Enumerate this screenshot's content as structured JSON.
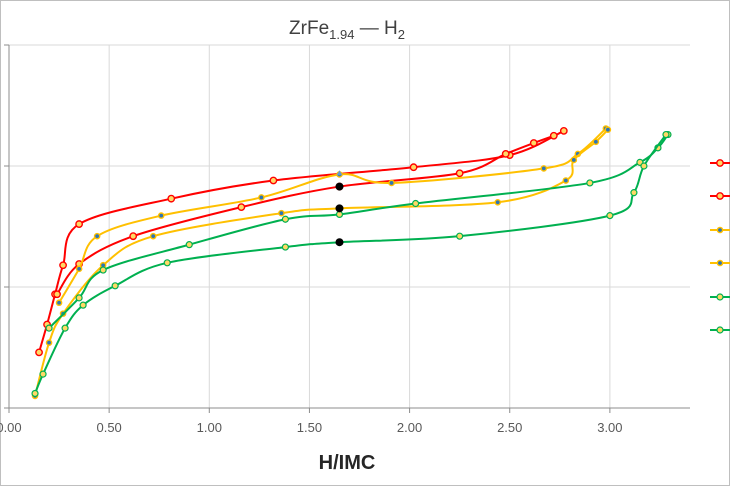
{
  "chart_data": {
    "type": "line",
    "title": {
      "main": "ZrFe",
      "sub": "1.94",
      "dash": " — H",
      "sub2": "2"
    },
    "xlabel": "H/IMC",
    "ylabel": "",
    "xlim": [
      0,
      3.4
    ],
    "ylim": [
      0,
      3
    ],
    "xticks": [
      "0.00",
      "0.50",
      "1.00",
      "1.50",
      "2.00",
      "2.50",
      "3.00"
    ],
    "grid": true,
    "colors": {
      "red": "#ff0000",
      "yellow": "#ffc000",
      "green": "#00b050"
    },
    "series": [
      {
        "color": "#ff0000",
        "marker": "open-yellow",
        "points": [
          [
            0.15,
            0.46
          ],
          [
            0.19,
            0.69
          ],
          [
            0.23,
            0.94
          ],
          [
            0.27,
            1.18
          ],
          [
            0.35,
            1.52
          ],
          [
            0.81,
            1.73
          ],
          [
            1.32,
            1.88
          ],
          [
            2.02,
            1.99
          ],
          [
            2.5,
            2.09
          ],
          [
            2.77,
            2.29
          ]
        ]
      },
      {
        "color": "#ff0000",
        "marker": "open-yellow",
        "points": [
          [
            0.24,
            0.94
          ],
          [
            0.35,
            1.19
          ],
          [
            0.62,
            1.42
          ],
          [
            1.16,
            1.66
          ],
          [
            1.65,
            1.83
          ],
          [
            2.25,
            1.94
          ],
          [
            2.48,
            2.1
          ],
          [
            2.62,
            2.19
          ],
          [
            2.72,
            2.25
          ]
        ]
      },
      {
        "color": "#ffc000",
        "marker": "blue-dot",
        "points": [
          [
            0.25,
            0.87
          ],
          [
            0.35,
            1.15
          ],
          [
            0.44,
            1.42
          ],
          [
            0.76,
            1.59
          ],
          [
            1.26,
            1.74
          ],
          [
            1.65,
            1.93
          ],
          [
            1.91,
            1.86
          ],
          [
            2.67,
            1.98
          ],
          [
            2.84,
            2.1
          ],
          [
            2.98,
            2.31
          ]
        ]
      },
      {
        "color": "#ffc000",
        "marker": "blue-dot",
        "points": [
          [
            0.13,
            0.1
          ],
          [
            0.2,
            0.54
          ],
          [
            0.27,
            0.78
          ],
          [
            0.47,
            1.18
          ],
          [
            0.72,
            1.42
          ],
          [
            1.36,
            1.61
          ],
          [
            1.65,
            1.65
          ],
          [
            2.44,
            1.7
          ],
          [
            2.78,
            1.88
          ],
          [
            2.82,
            2.05
          ],
          [
            2.93,
            2.2
          ],
          [
            2.99,
            2.3
          ]
        ]
      },
      {
        "color": "#00b050",
        "marker": "yellow-dot",
        "points": [
          [
            0.2,
            0.66
          ],
          [
            0.35,
            0.91
          ],
          [
            0.47,
            1.14
          ],
          [
            0.9,
            1.35
          ],
          [
            1.38,
            1.56
          ],
          [
            1.65,
            1.6
          ],
          [
            2.03,
            1.69
          ],
          [
            2.9,
            1.86
          ],
          [
            3.15,
            2.03
          ],
          [
            3.24,
            2.15
          ],
          [
            3.29,
            2.26
          ]
        ]
      },
      {
        "color": "#00b050",
        "marker": "yellow-dot",
        "points": [
          [
            0.13,
            0.12
          ],
          [
            0.17,
            0.28
          ],
          [
            0.28,
            0.66
          ],
          [
            0.37,
            0.85
          ],
          [
            0.53,
            1.01
          ],
          [
            0.79,
            1.2
          ],
          [
            1.38,
            1.33
          ],
          [
            1.65,
            1.37
          ],
          [
            2.25,
            1.42
          ],
          [
            3.0,
            1.59
          ],
          [
            3.12,
            1.78
          ],
          [
            3.17,
            2.0
          ],
          [
            3.28,
            2.26
          ]
        ]
      }
    ],
    "annotations": {
      "black_dots": [
        [
          1.65,
          1.83
        ],
        [
          1.65,
          1.65
        ],
        [
          1.65,
          1.37
        ]
      ],
      "blue_triangle": [
        1.65,
        1.94
      ]
    }
  }
}
